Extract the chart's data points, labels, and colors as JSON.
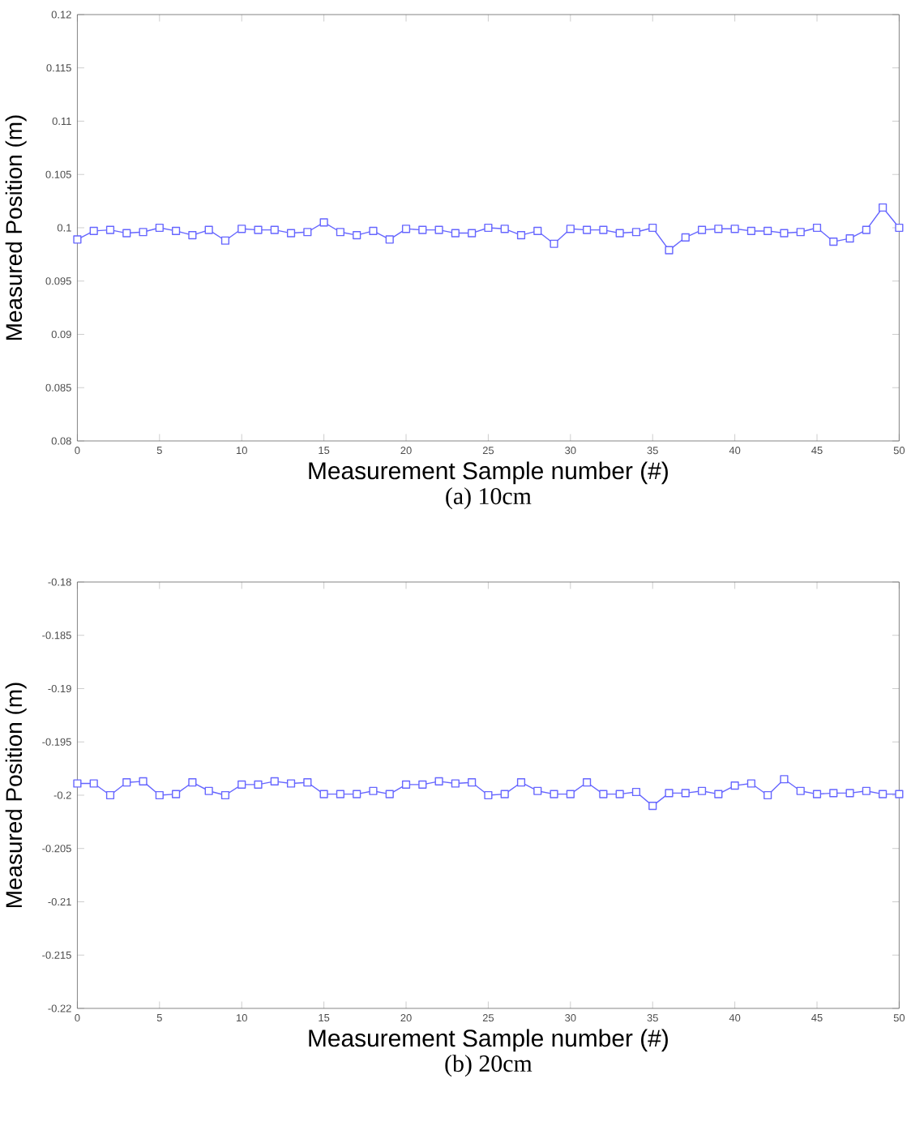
{
  "chart_data": [
    {
      "type": "line",
      "title": "(a) 10cm",
      "xlabel": "Measurement  Sample  number  (#)",
      "ylabel": "Measured  Position  (m)",
      "marker": "square",
      "line_style": "solid",
      "grid": false,
      "x": [
        0,
        1,
        2,
        3,
        4,
        5,
        6,
        7,
        8,
        9,
        10,
        11,
        12,
        13,
        14,
        15,
        16,
        17,
        18,
        19,
        20,
        21,
        22,
        23,
        24,
        25,
        26,
        27,
        28,
        29,
        30,
        31,
        32,
        33,
        34,
        35,
        36,
        37,
        38,
        39,
        40,
        41,
        42,
        43,
        44,
        45,
        46,
        47,
        48,
        49,
        50
      ],
      "series": [
        {
          "color": "#6666ff",
          "values": [
            0.0989,
            0.0997,
            0.0998,
            0.0995,
            0.0996,
            0.1,
            0.0997,
            0.0993,
            0.0998,
            0.0988,
            0.0999,
            0.0998,
            0.0998,
            0.0995,
            0.0996,
            0.1005,
            0.0996,
            0.0993,
            0.0997,
            0.0989,
            0.0999,
            0.0998,
            0.0998,
            0.0995,
            0.0995,
            0.1,
            0.0999,
            0.0993,
            0.0997,
            0.0985,
            0.0999,
            0.0998,
            0.0998,
            0.0995,
            0.0996,
            0.1,
            0.0979,
            0.0991,
            0.0998,
            0.0999,
            0.0999,
            0.0997,
            0.0997,
            0.0995,
            0.0996,
            0.1,
            0.0987,
            0.099,
            0.0998,
            0.1019,
            0.1
          ]
        }
      ],
      "xlim": [
        0,
        50
      ],
      "xticks": [
        0,
        5,
        10,
        15,
        20,
        25,
        30,
        35,
        40,
        45,
        50
      ],
      "ylim": [
        0.08,
        0.12
      ],
      "yticks": [
        0.08,
        0.085,
        0.09,
        0.095,
        0.1,
        0.105,
        0.11,
        0.115,
        0.12
      ]
    },
    {
      "type": "line",
      "title": "(b) 20cm",
      "xlabel": "Measurement  Sample  number  (#)",
      "ylabel": "Measured  Position  (m)",
      "marker": "square",
      "line_style": "solid",
      "grid": false,
      "x": [
        0,
        1,
        2,
        3,
        4,
        5,
        6,
        7,
        8,
        9,
        10,
        11,
        12,
        13,
        14,
        15,
        16,
        17,
        18,
        19,
        20,
        21,
        22,
        23,
        24,
        25,
        26,
        27,
        28,
        29,
        30,
        31,
        32,
        33,
        34,
        35,
        36,
        37,
        38,
        39,
        40,
        41,
        42,
        43,
        44,
        45,
        46,
        47,
        48,
        49,
        50
      ],
      "series": [
        {
          "color": "#6666ff",
          "values": [
            -0.1989,
            -0.1989,
            -0.2,
            -0.1988,
            -0.1987,
            -0.2,
            -0.1999,
            -0.1988,
            -0.1996,
            -0.2,
            -0.199,
            -0.199,
            -0.1987,
            -0.1989,
            -0.1988,
            -0.1999,
            -0.1999,
            -0.1999,
            -0.1996,
            -0.1999,
            -0.199,
            -0.199,
            -0.1987,
            -0.1989,
            -0.1988,
            -0.2,
            -0.1999,
            -0.1988,
            -0.1996,
            -0.1999,
            -0.1999,
            -0.1988,
            -0.1999,
            -0.1999,
            -0.1997,
            -0.201,
            -0.1998,
            -0.1998,
            -0.1996,
            -0.1999,
            -0.1991,
            -0.1989,
            -0.2,
            -0.1985,
            -0.1996,
            -0.1999,
            -0.1998,
            -0.1998,
            -0.1996,
            -0.1999,
            -0.1999
          ]
        }
      ],
      "xlim": [
        0,
        50
      ],
      "xticks": [
        0,
        5,
        10,
        15,
        20,
        25,
        30,
        35,
        40,
        45,
        50
      ],
      "ylim": [
        -0.22,
        -0.18
      ],
      "yticks": [
        -0.22,
        -0.215,
        -0.21,
        -0.205,
        -0.2,
        -0.195,
        -0.19,
        -0.185,
        -0.18
      ]
    }
  ]
}
